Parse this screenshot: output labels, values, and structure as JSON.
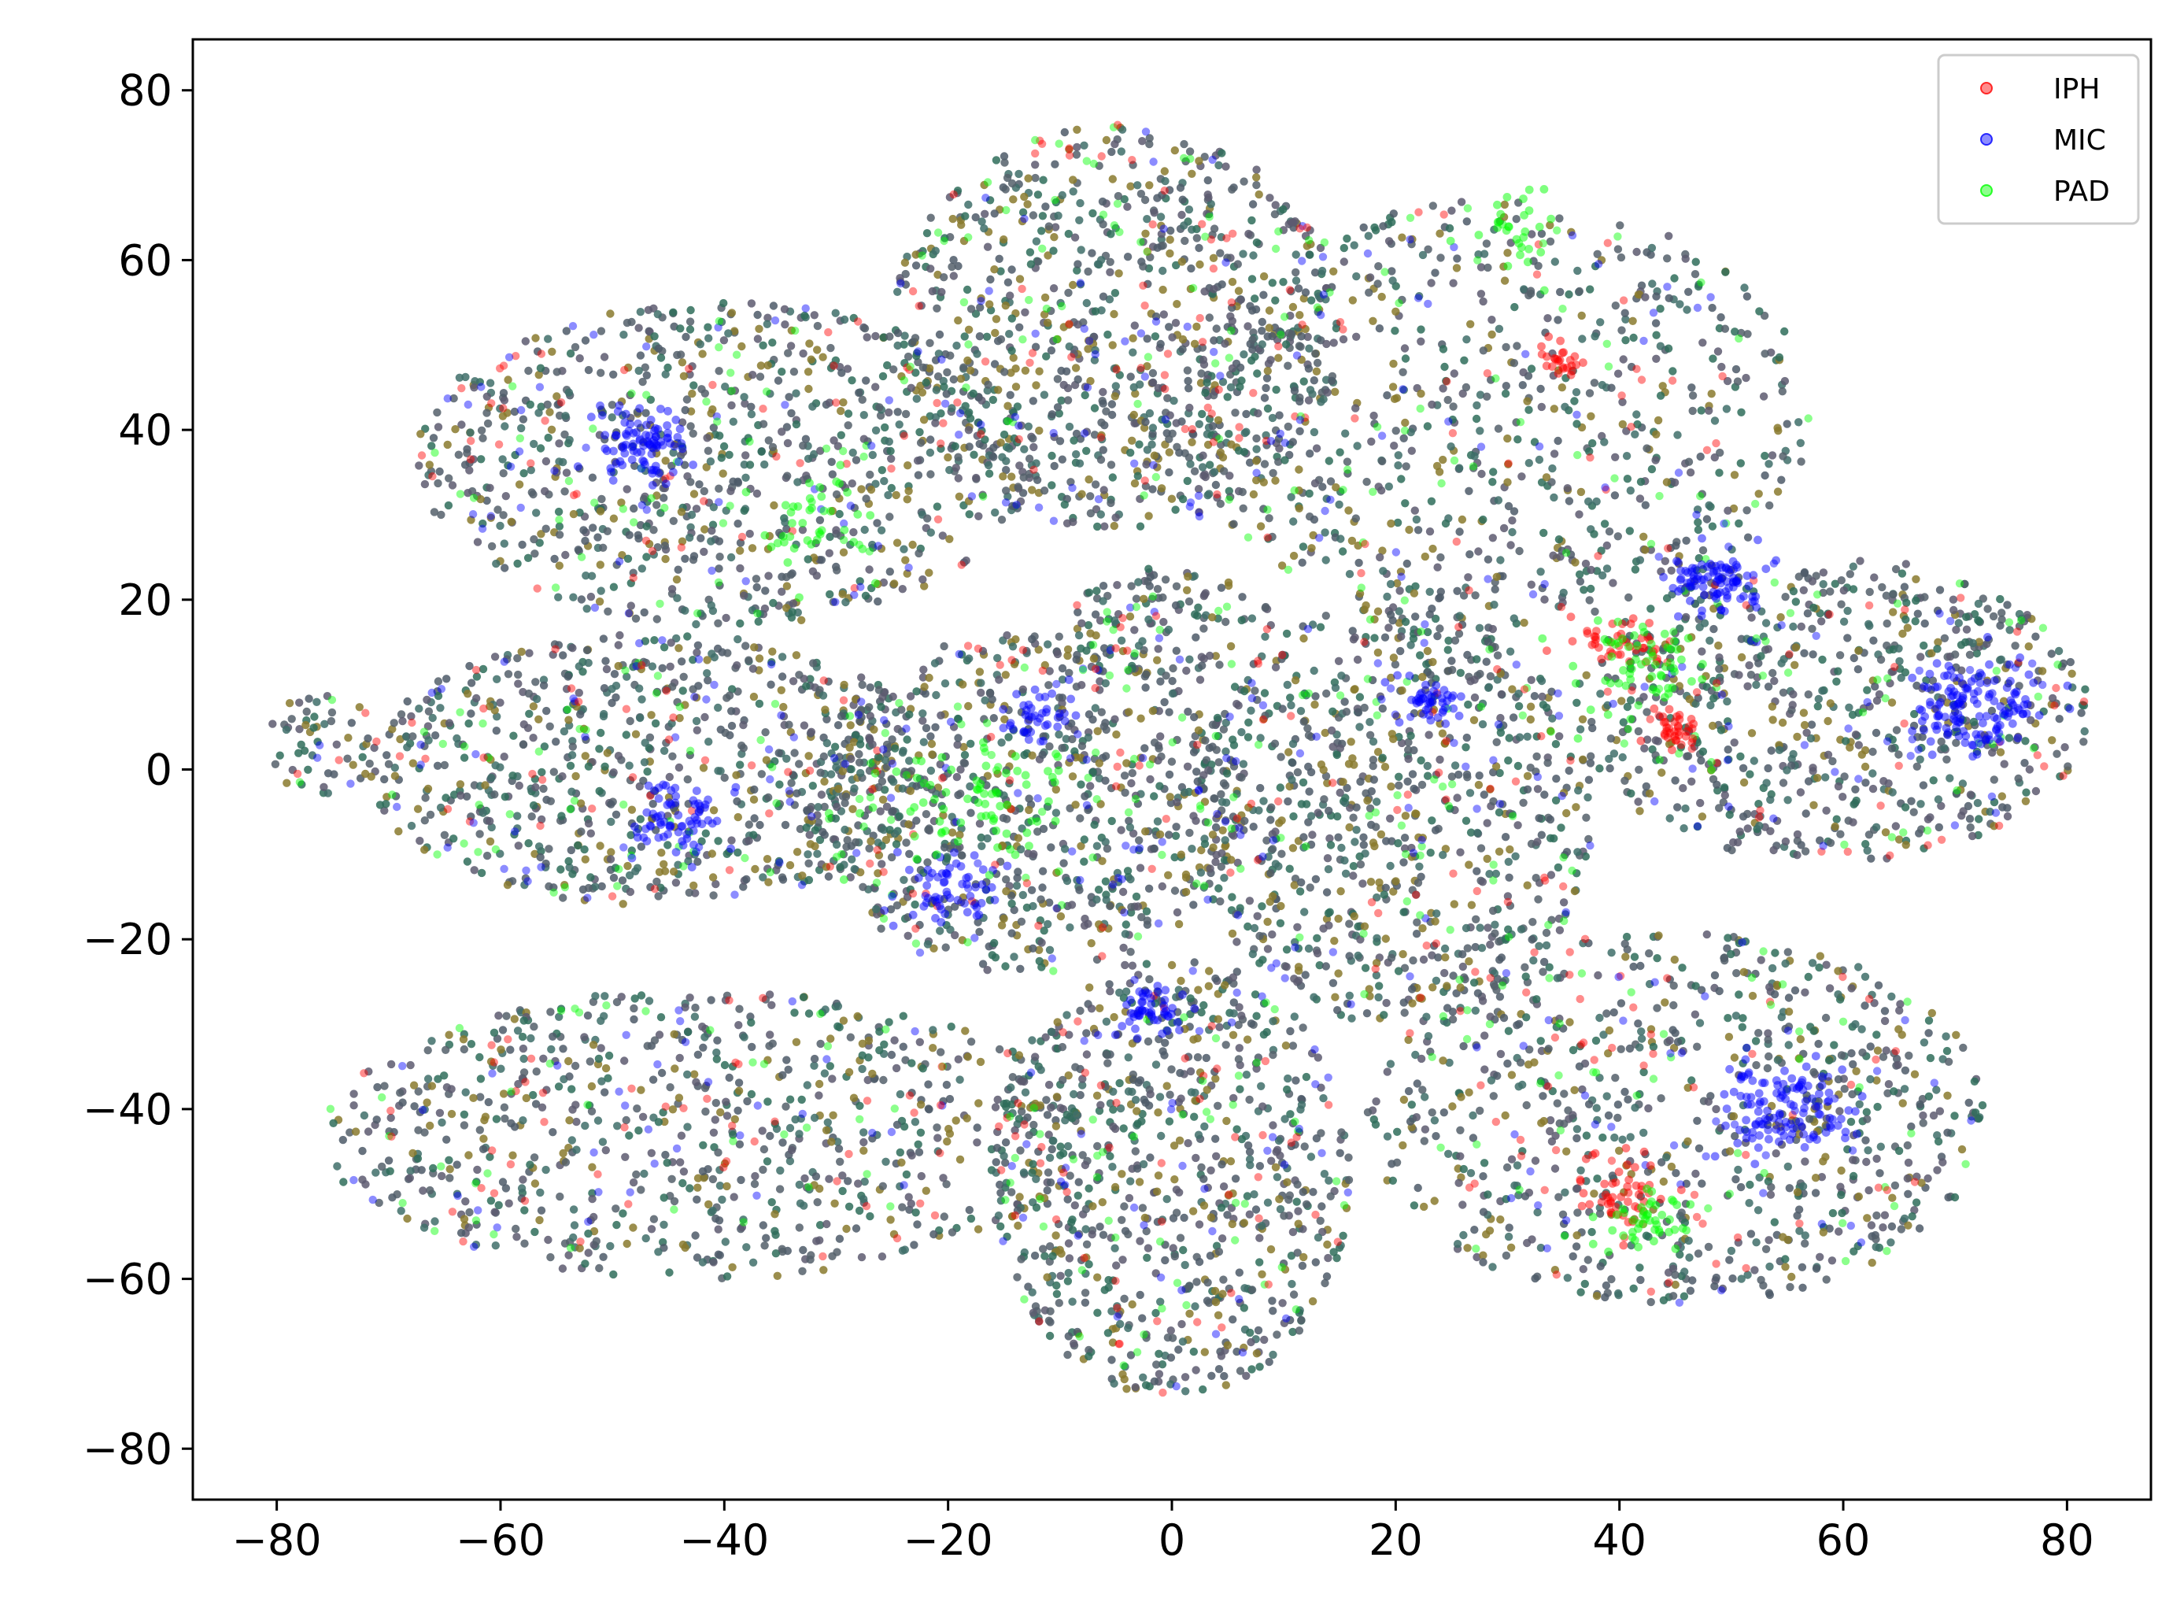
{
  "chart_data": {
    "type": "scatter",
    "title": "",
    "xlabel": "",
    "ylabel": "",
    "xlim": [
      -87.5,
      87.5
    ],
    "ylim": [
      -86,
      86
    ],
    "xticks": [
      -80,
      -60,
      -40,
      -20,
      0,
      20,
      40,
      60,
      80
    ],
    "yticks": [
      -80,
      -60,
      -40,
      -20,
      0,
      20,
      40,
      60,
      80
    ],
    "grid": false,
    "legend_position": "top-right",
    "series": [
      {
        "name": "IPH",
        "color": "#ff0000"
      },
      {
        "name": "MIC",
        "color": "#0000ff"
      },
      {
        "name": "PAD",
        "color": "#00ff00"
      }
    ],
    "clusters": [
      {
        "cx": -46,
        "cy": 0,
        "rx": 26,
        "ry": 16,
        "n": 700
      },
      {
        "cx": -76,
        "cy": 3,
        "rx": 5,
        "ry": 6,
        "n": 50
      },
      {
        "cx": -40,
        "cy": 36,
        "rx": 28,
        "ry": 19,
        "n": 800
      },
      {
        "cx": -5,
        "cy": 52,
        "rx": 20,
        "ry": 24,
        "n": 780
      },
      {
        "cx": 29,
        "cy": 42,
        "rx": 28,
        "ry": 25,
        "n": 700
      },
      {
        "cx": 59,
        "cy": 7,
        "rx": 23,
        "ry": 18,
        "n": 680
      },
      {
        "cx": -13,
        "cy": -4,
        "rx": 20,
        "ry": 20,
        "n": 720
      },
      {
        "cx": 0,
        "cy": 17,
        "rx": 9,
        "ry": 7,
        "n": 120
      },
      {
        "cx": 20,
        "cy": -5,
        "rx": 18,
        "ry": 25,
        "n": 760
      },
      {
        "cx": -42,
        "cy": -43,
        "rx": 34,
        "ry": 17,
        "n": 740
      },
      {
        "cx": 0,
        "cy": -48,
        "rx": 16,
        "ry": 26,
        "n": 720
      },
      {
        "cx": 45,
        "cy": -41,
        "rx": 28,
        "ry": 22,
        "n": 760
      }
    ],
    "hotspots": [
      {
        "series": "MIC",
        "cx": -47,
        "cy": 38,
        "r": 4,
        "n": 90
      },
      {
        "series": "MIC",
        "cx": 49,
        "cy": 22,
        "r": 3.5,
        "n": 90
      },
      {
        "series": "MIC",
        "cx": 72,
        "cy": 7,
        "r": 5,
        "n": 140
      },
      {
        "series": "MIC",
        "cx": 55,
        "cy": -40,
        "r": 5,
        "n": 120
      },
      {
        "series": "MIC",
        "cx": -2,
        "cy": -28,
        "r": 2.5,
        "n": 50
      },
      {
        "series": "MIC",
        "cx": -44,
        "cy": -6,
        "r": 4,
        "n": 70
      },
      {
        "series": "MIC",
        "cx": -20,
        "cy": -14,
        "r": 4,
        "n": 60
      },
      {
        "series": "MIC",
        "cx": 23,
        "cy": 8,
        "r": 2.5,
        "n": 45
      },
      {
        "series": "MIC",
        "cx": -12,
        "cy": 6,
        "r": 2.5,
        "n": 40
      },
      {
        "series": "IPH",
        "cx": 45,
        "cy": 5,
        "r": 2,
        "n": 35
      },
      {
        "series": "IPH",
        "cx": 40,
        "cy": -50,
        "r": 4,
        "n": 50
      },
      {
        "series": "IPH",
        "cx": 35,
        "cy": 48,
        "r": 2,
        "n": 25
      },
      {
        "series": "IPH",
        "cx": 40,
        "cy": 15,
        "r": 4,
        "n": 40
      },
      {
        "series": "PAD",
        "cx": 42,
        "cy": 12,
        "r": 5,
        "n": 60
      },
      {
        "series": "PAD",
        "cx": -18,
        "cy": -4,
        "r": 8,
        "n": 70
      },
      {
        "series": "PAD",
        "cx": 42,
        "cy": -53,
        "r": 4,
        "n": 45
      },
      {
        "series": "PAD",
        "cx": -33,
        "cy": 30,
        "r": 6,
        "n": 40
      },
      {
        "series": "PAD",
        "cx": 30,
        "cy": 63,
        "r": 4,
        "n": 30
      }
    ]
  }
}
